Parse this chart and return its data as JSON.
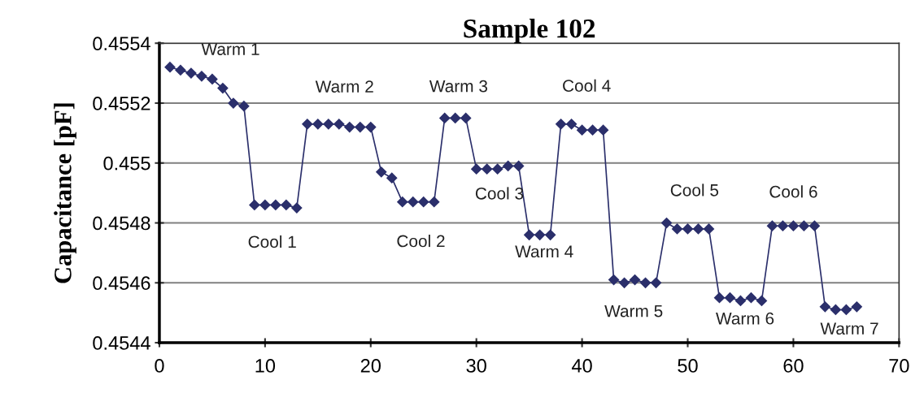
{
  "chart_data": {
    "type": "line",
    "title": "Sample 102",
    "ylabel": "Capacitance [pF]",
    "x": [
      1,
      2,
      3,
      4,
      5,
      6,
      7,
      8,
      9,
      10,
      11,
      12,
      13,
      14,
      15,
      16,
      17,
      18,
      19,
      20,
      21,
      22,
      23,
      24,
      25,
      26,
      27,
      28,
      29,
      30,
      31,
      32,
      33,
      34,
      35,
      36,
      37,
      38,
      39,
      40,
      41,
      42,
      43,
      44,
      45,
      46,
      47,
      48,
      49,
      50,
      51,
      52,
      53,
      54,
      55,
      56,
      57,
      58,
      59,
      60,
      61,
      62,
      63,
      64,
      65,
      66
    ],
    "series": [
      {
        "color": "#2b2f6b",
        "values": [
          0.45532,
          0.45531,
          0.4553,
          0.45529,
          0.45528,
          0.45525,
          0.4552,
          0.45519,
          0.45486,
          0.45486,
          0.45486,
          0.45486,
          0.45485,
          0.45513,
          0.45513,
          0.45513,
          0.45513,
          0.45512,
          0.45512,
          0.45512,
          0.45497,
          0.45495,
          0.45487,
          0.45487,
          0.45487,
          0.45487,
          0.45515,
          0.45515,
          0.45515,
          0.45498,
          0.45498,
          0.45498,
          0.45499,
          0.45499,
          0.45476,
          0.45476,
          0.45476,
          0.45513,
          0.45513,
          0.45511,
          0.45511,
          0.45511,
          0.45461,
          0.4546,
          0.45461,
          0.4546,
          0.4546,
          0.4548,
          0.45478,
          0.45478,
          0.45478,
          0.45478,
          0.45455,
          0.45455,
          0.45454,
          0.45455,
          0.45454,
          0.45479,
          0.45479,
          0.45479,
          0.45479,
          0.45479,
          0.45452,
          0.45451,
          0.45451,
          0.45452
        ]
      }
    ],
    "xlim": [
      0,
      70
    ],
    "xticks": [
      0,
      10,
      20,
      30,
      40,
      50,
      60,
      70
    ],
    "ylim": [
      0.4544,
      0.4554
    ],
    "yticks": [
      0.4544,
      0.4546,
      0.4548,
      0.455,
      0.4552,
      0.4554
    ],
    "grid": "y",
    "marker": "diamond",
    "line_style": "solid",
    "annotations": [
      {
        "text": "Warm 1",
        "x": 3,
        "y": 0.4553
      },
      {
        "text": "Cool 1",
        "x": 11,
        "y": 0.45486
      },
      {
        "text": "Warm 2",
        "x": 17,
        "y": 0.45513
      },
      {
        "text": "Cool 2",
        "x": 24,
        "y": 0.45487
      },
      {
        "text": "Warm 3",
        "x": 28,
        "y": 0.45515
      },
      {
        "text": "Cool 3",
        "x": 31,
        "y": 0.45498
      },
      {
        "text": "Warm 4",
        "x": 36,
        "y": 0.45476
      },
      {
        "text": "Cool 4",
        "x": 40,
        "y": 0.45511
      },
      {
        "text": "Warm 5",
        "x": 45,
        "y": 0.45461
      },
      {
        "text": "Cool 5",
        "x": 50,
        "y": 0.45478
      },
      {
        "text": "Warm 6",
        "x": 55,
        "y": 0.45454
      },
      {
        "text": "Cool 6",
        "x": 60,
        "y": 0.45479
      },
      {
        "text": "Warm 7",
        "x": 65,
        "y": 0.45451
      }
    ]
  }
}
